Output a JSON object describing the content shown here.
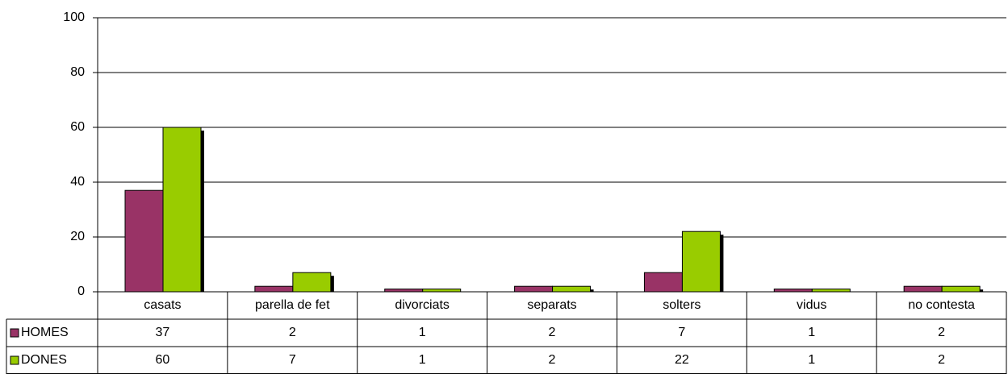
{
  "chart_data": {
    "type": "bar",
    "categories": [
      "casats",
      "parella de fet",
      "divorciats",
      "separats",
      "solters",
      "vidus",
      "no contesta"
    ],
    "series": [
      {
        "name": "HOMES",
        "color": "#993366",
        "values": [
          37,
          2,
          1,
          2,
          7,
          1,
          2
        ]
      },
      {
        "name": "DONES",
        "color": "#99cc00",
        "values": [
          60,
          7,
          1,
          2,
          22,
          1,
          2
        ]
      }
    ],
    "ylim": [
      0,
      100
    ],
    "yticks": [
      0,
      20,
      40,
      60,
      80,
      100
    ],
    "grid": true,
    "legend": "table"
  }
}
